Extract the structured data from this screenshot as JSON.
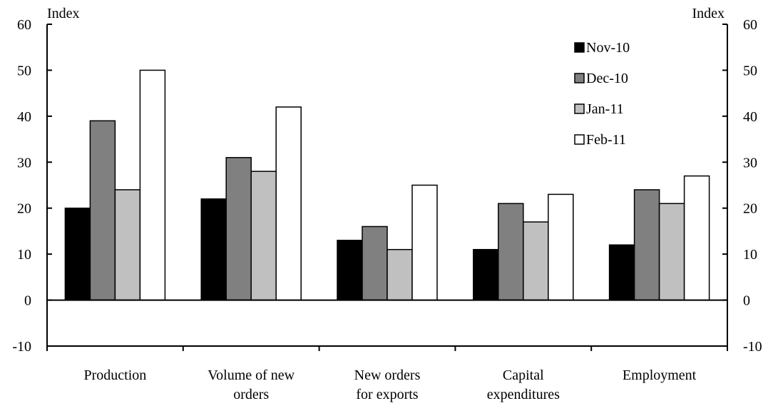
{
  "chart_data": {
    "type": "bar",
    "title": "",
    "xlabel": "",
    "ylabel_left": "Index",
    "ylabel_right": "Index",
    "ylim": [
      -10,
      60
    ],
    "yticks": [
      -10,
      0,
      10,
      20,
      30,
      40,
      50,
      60
    ],
    "grid": false,
    "legend_position": "top-right",
    "categories": [
      [
        "Production"
      ],
      [
        "Volume of new",
        "orders"
      ],
      [
        "New orders",
        "for exports"
      ],
      [
        "Capital",
        "expenditures"
      ],
      [
        "Employment"
      ]
    ],
    "series": [
      {
        "name": "Nov-10",
        "color": "#000000",
        "values": [
          20,
          22,
          13,
          11,
          12
        ]
      },
      {
        "name": "Dec-10",
        "color": "#808080",
        "values": [
          39,
          31,
          16,
          21,
          24
        ]
      },
      {
        "name": "Jan-11",
        "color": "#c0c0c0",
        "values": [
          24,
          28,
          11,
          17,
          21
        ]
      },
      {
        "name": "Feb-11",
        "color": "#ffffff",
        "values": [
          50,
          42,
          25,
          23,
          27
        ]
      }
    ]
  }
}
